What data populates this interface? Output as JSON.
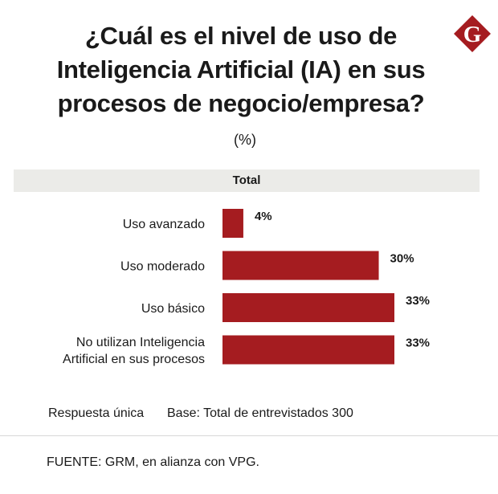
{
  "title_lines": [
    "¿Cuál es el nivel de uso de",
    "Inteligencia Artificial (IA) en sus",
    "procesos de  negocio/empresa?"
  ],
  "logo_letter": "G",
  "unit": "(%)",
  "group_header": "Total",
  "chart_data": {
    "type": "bar",
    "orientation": "horizontal",
    "categories": [
      [
        "Uso avanzado"
      ],
      [
        "Uso moderado"
      ],
      [
        "Uso básico"
      ],
      [
        "No utilizan Inteligencia",
        "Artificial en sus procesos"
      ]
    ],
    "values": [
      4,
      30,
      33,
      33
    ],
    "value_labels": [
      "4%",
      "30%",
      "33%",
      "33%"
    ],
    "bar_color": "#a51c20",
    "xlim": [
      0,
      33
    ]
  },
  "notes": {
    "response": "Respuesta única",
    "base": "Base: Total de entrevistados 300"
  },
  "source": "FUENTE: GRM, en alianza con VPG.",
  "colors": {
    "accent": "#a51c20",
    "band": "#ebebe8"
  }
}
